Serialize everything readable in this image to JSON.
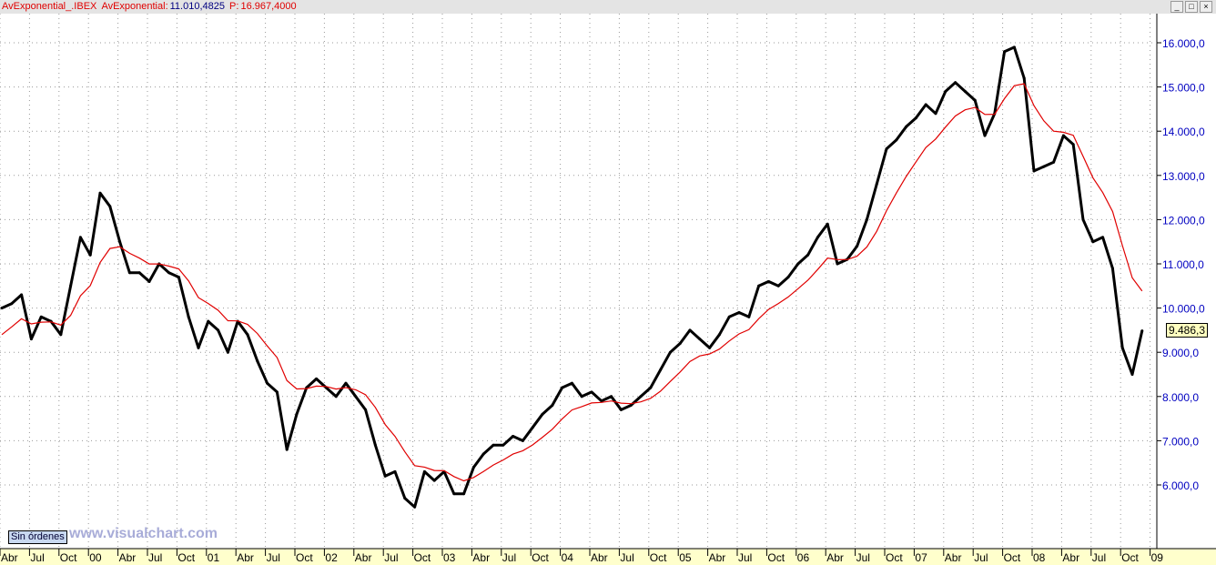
{
  "header": {
    "series_label": "AvExponential_.IBEX",
    "indicator_label": "AvExponential:",
    "indicator_value": "11.010,4825",
    "p_label": "P:",
    "p_value": "16.967,4000"
  },
  "window_buttons": [
    "_",
    "□",
    "×"
  ],
  "status_button": "Sin órdenes",
  "watermark": "www.visualchart.com",
  "last_price_label": "9.486,3",
  "colors": {
    "price": "#000000",
    "ema": "#e00000",
    "axis_text": "#0000c0",
    "time_axis_bg": "#ffffcc"
  },
  "chart_data": {
    "type": "line",
    "title": "",
    "symbol": "IBEX",
    "grid": true,
    "ylim": [
      5000,
      16500
    ],
    "y_ticks": [
      "6.000,0",
      "7.000,0",
      "8.000,0",
      "9.000,0",
      "10.000,0",
      "11.000,0",
      "12.000,0",
      "13.000,0",
      "14.000,0",
      "15.000,0",
      "16.000,0"
    ],
    "y_tick_values": [
      6000,
      7000,
      8000,
      9000,
      10000,
      11000,
      12000,
      13000,
      14000,
      15000,
      16000
    ],
    "x_ticks": [
      "Abr",
      "Jul",
      "Oct",
      "00",
      "Abr",
      "Jul",
      "Oct",
      "01",
      "Abr",
      "Jul",
      "Oct",
      "02",
      "Abr",
      "Jul",
      "Oct",
      "03",
      "Abr",
      "Jul",
      "Oct",
      "04",
      "Abr",
      "Jul",
      "Oct",
      "05",
      "Abr",
      "Jul",
      "Oct",
      "06",
      "Abr",
      "Jul",
      "Oct",
      "07",
      "Abr",
      "Jul",
      "Oct",
      "08",
      "Abr",
      "Jul",
      "Oct",
      "09"
    ],
    "x_start": "1999-04",
    "series": [
      {
        "values": [
          10000,
          10100,
          10300,
          9300,
          9800,
          9700,
          9400,
          10500,
          11600,
          11200,
          12600,
          12300,
          11500,
          10800,
          10800,
          10600,
          11000,
          10800,
          10700,
          9800,
          9100,
          9700,
          9500,
          9000,
          9700,
          9400,
          8800,
          8300,
          8100,
          6800,
          7600,
          8200,
          8400,
          8200,
          8000,
          8300,
          8000,
          7700,
          6900,
          6200,
          6300,
          5700,
          5500,
          6300,
          6100,
          6300,
          5800,
          5800,
          6400,
          6700,
          6900,
          6900,
          7100,
          7000,
          7300,
          7600,
          7800,
          8200,
          8300,
          8000,
          8100,
          7900,
          8000,
          7700,
          7800,
          8000,
          8200,
          8600,
          9000,
          9200,
          9500,
          9300,
          9100,
          9400,
          9800,
          9900,
          9800,
          10500,
          10600,
          10500,
          10700,
          11000,
          11200,
          11600,
          11900,
          11000,
          11100,
          11400,
          12000,
          12800,
          13600,
          13800,
          14100,
          14300,
          14600,
          14400,
          14900,
          15100,
          14900,
          14700,
          13900,
          14400,
          15800,
          15900,
          15200,
          13100,
          13200,
          13300,
          13900,
          13700,
          12000,
          11500,
          11600,
          10900,
          9100,
          8500,
          9486
        ]
      },
      {
        "name": "AvExponential",
        "values": []
      }
    ]
  }
}
